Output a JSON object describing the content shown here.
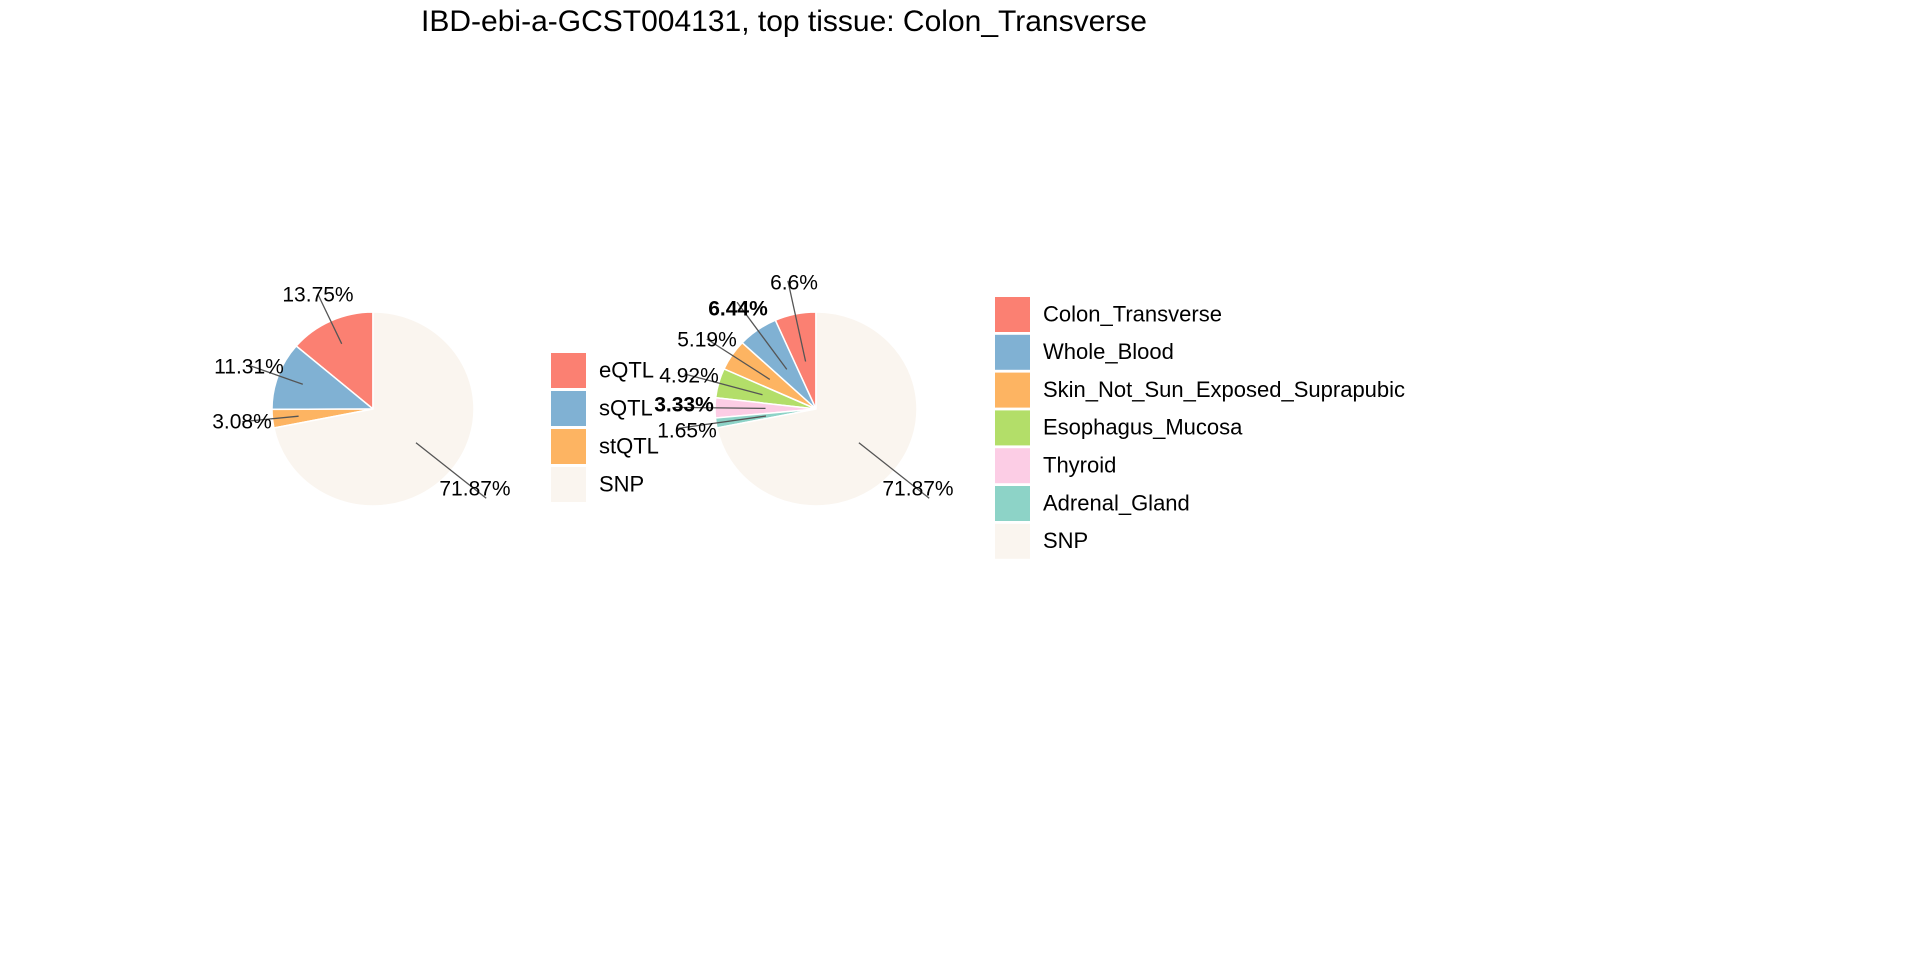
{
  "title": "IBD-ebi-a-GCST004131, top tissue: Colon_Transverse",
  "chart_data": [
    {
      "type": "pie",
      "slices": [
        {
          "label": "eQTL",
          "value": 13.75,
          "text": "13.75%",
          "color": "#FB8072"
        },
        {
          "label": "sQTL",
          "value": 11.31,
          "text": "11.31%",
          "color": "#80B1D3"
        },
        {
          "label": "stQTL",
          "value": 3.08,
          "text": "3.08%",
          "color": "#FDB462"
        },
        {
          "label": "SNP",
          "value": 71.87,
          "text": "71.87%",
          "color": "#FAF5EF"
        }
      ],
      "legend": [
        "eQTL",
        "sQTL",
        "stQTL",
        "SNP"
      ],
      "start_angle_deg": 0,
      "direction": "counterclockwise"
    },
    {
      "type": "pie",
      "slices": [
        {
          "label": "Colon_Transverse",
          "value": 6.6,
          "text": "6.6%",
          "color": "#FB8072",
          "bold": false
        },
        {
          "label": "Whole_Blood",
          "value": 6.44,
          "text": "6.44%",
          "color": "#80B1D3",
          "bold": true
        },
        {
          "label": "Skin_Not_Sun_Exposed_Suprapubic",
          "value": 5.19,
          "text": "5.19%",
          "color": "#FDB462",
          "bold": false
        },
        {
          "label": "Esophagus_Mucosa",
          "value": 4.92,
          "text": "4.92%",
          "color": "#B3DE69",
          "bold": false
        },
        {
          "label": "Thyroid",
          "value": 3.33,
          "text": "3.33%",
          "color": "#FCCDE5",
          "bold": true
        },
        {
          "label": "Adrenal_Gland",
          "value": 1.65,
          "text": "1.65%",
          "color": "#8DD3C7",
          "bold": false
        },
        {
          "label": "SNP",
          "value": 71.87,
          "text": "71.87%",
          "color": "#FAF5EF",
          "bold": false
        }
      ],
      "legend": [
        "Colon_Transverse",
        "Whole_Blood",
        "Skin_Not_Sun_Exposed_Suprapubic",
        "Esophagus_Mucosa",
        "Thyroid",
        "Adrenal_Gland",
        "SNP"
      ],
      "start_angle_deg": 0,
      "direction": "counterclockwise"
    }
  ]
}
